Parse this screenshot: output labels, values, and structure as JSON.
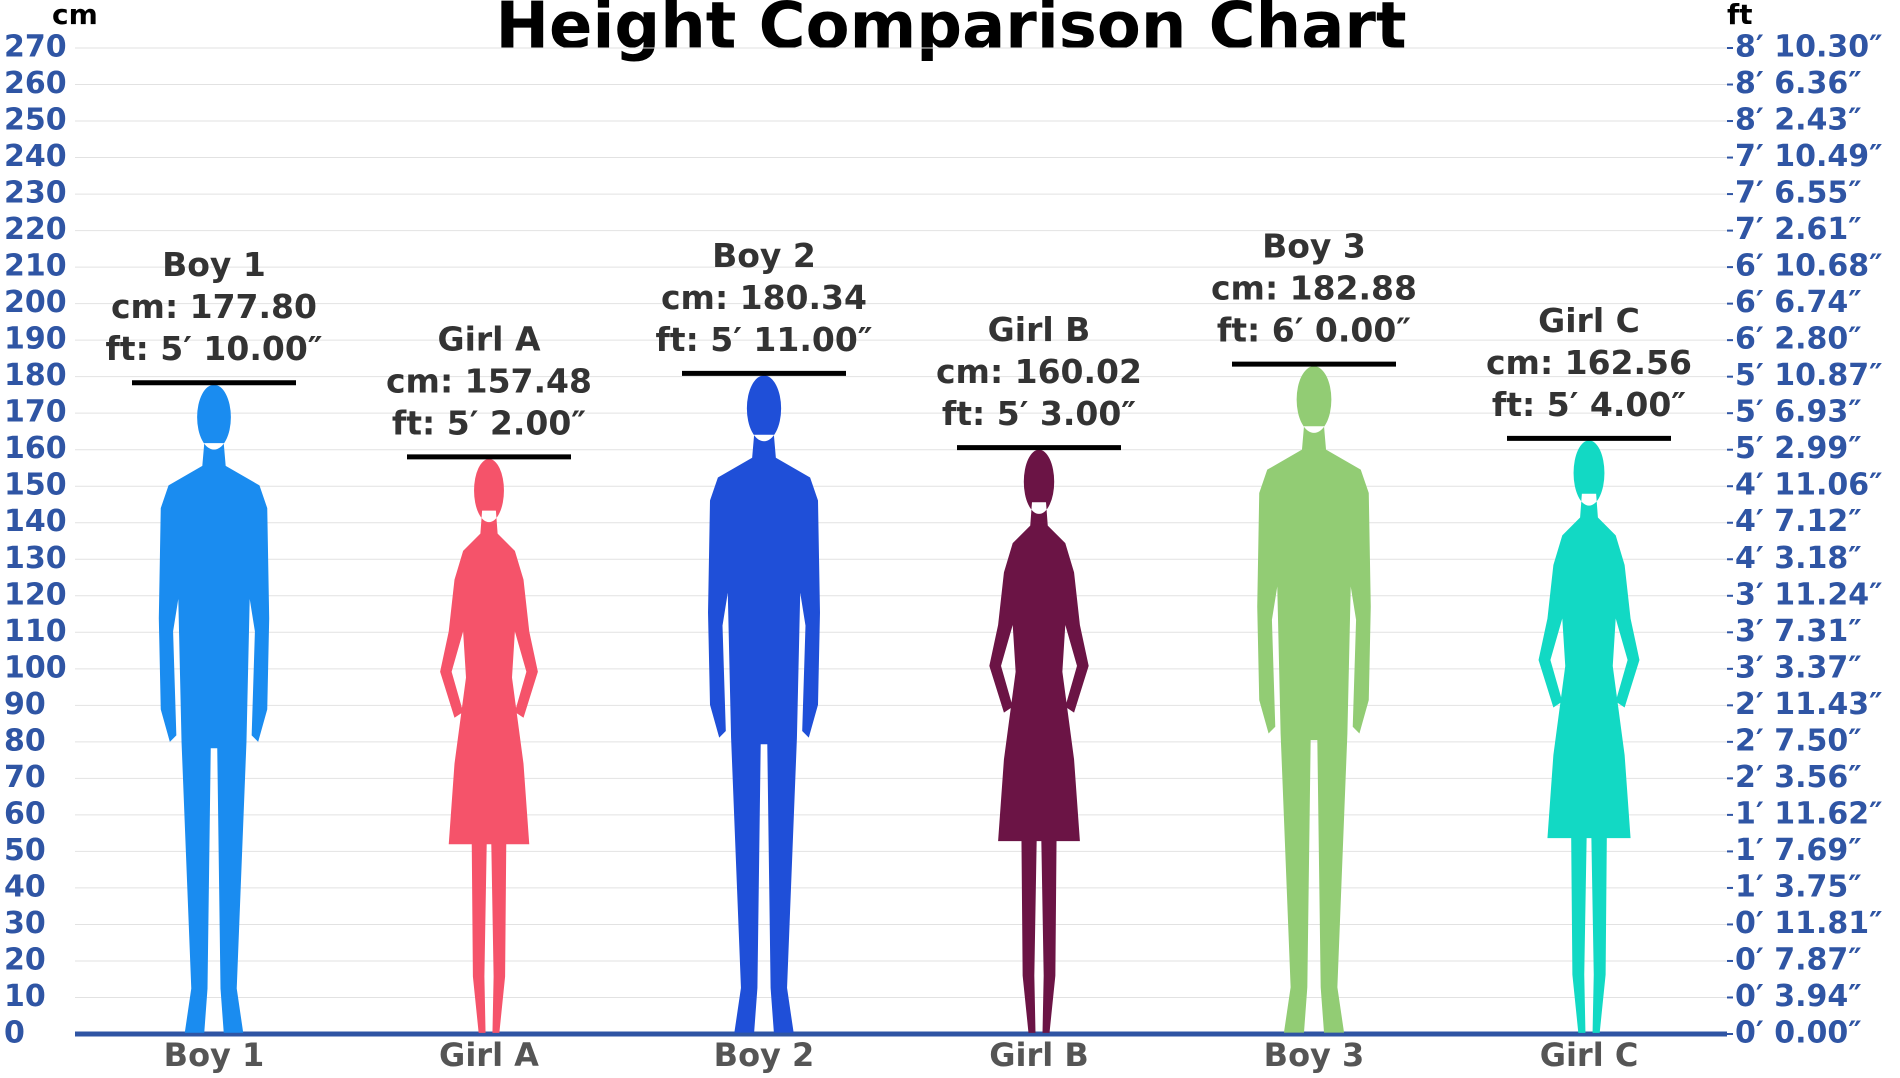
{
  "chart_data": {
    "type": "bar",
    "title": "Height Comparison Chart",
    "y_label": "cm",
    "y2_label": "ft",
    "categories": [
      "Boy 1",
      "Girl A",
      "Boy 2",
      "Girl B",
      "Boy 3",
      "Girl C"
    ],
    "values": [
      177.8,
      157.48,
      180.34,
      160.02,
      182.88,
      162.56
    ],
    "value_labels": [
      "cm: 177.80",
      "cm: 157.48",
      "cm: 180.34",
      "cm: 160.02",
      "cm: 182.88",
      "cm: 162.56"
    ],
    "ft_labels": [
      "ft: 5′ 10.00″",
      "ft: 5′ 2.00″",
      "ft: 5′ 11.00″",
      "ft: 5′ 3.00″",
      "ft: 6′ 0.00″",
      "ft: 5′ 4.00″"
    ],
    "colors": [
      "#1a8cf0",
      "#f5536a",
      "#1f4fd8",
      "#6b1445",
      "#92cc74",
      "#12d9c4"
    ],
    "figures": [
      "male",
      "female",
      "male",
      "female",
      "male",
      "female"
    ],
    "ylim": [
      0,
      270
    ],
    "yticks": [
      0,
      10,
      20,
      30,
      40,
      50,
      60,
      70,
      80,
      90,
      100,
      110,
      120,
      130,
      140,
      150,
      160,
      170,
      180,
      190,
      200,
      210,
      220,
      230,
      240,
      250,
      260,
      270
    ],
    "y2lim": [
      0,
      270
    ],
    "y2ticks": [
      {
        "value": 0,
        "label": "0′ 0.00″"
      },
      {
        "value": 10,
        "label": "0′ 3.94″"
      },
      {
        "value": 20,
        "label": "0′ 7.87″"
      },
      {
        "value": 30,
        "label": "0′ 11.81″"
      },
      {
        "value": 40,
        "label": "1′ 3.75″"
      },
      {
        "value": 50,
        "label": "1′ 7.69″"
      },
      {
        "value": 60,
        "label": "1′ 11.62″"
      },
      {
        "value": 70,
        "label": "2′ 3.56″"
      },
      {
        "value": 80,
        "label": "2′ 7.50″"
      },
      {
        "value": 90,
        "label": "2′ 11.43″"
      },
      {
        "value": 100,
        "label": "3′ 3.37″"
      },
      {
        "value": 110,
        "label": "3′ 7.31″"
      },
      {
        "value": 120,
        "label": "3′ 11.24″"
      },
      {
        "value": 130,
        "label": "4′ 3.18″"
      },
      {
        "value": 140,
        "label": "4′ 7.12″"
      },
      {
        "value": 150,
        "label": "4′ 11.06″"
      },
      {
        "value": 160,
        "label": "5′ 2.99″"
      },
      {
        "value": 170,
        "label": "5′ 6.93″"
      },
      {
        "value": 180,
        "label": "5′ 10.87″"
      },
      {
        "value": 190,
        "label": "6′ 2.80″"
      },
      {
        "value": 200,
        "label": "6′ 6.74″"
      },
      {
        "value": 210,
        "label": "6′ 10.68″"
      },
      {
        "value": 220,
        "label": "7′ 2.61″"
      },
      {
        "value": 230,
        "label": "7′ 6.55″"
      },
      {
        "value": 240,
        "label": "7′ 10.49″"
      },
      {
        "value": 250,
        "label": "8′ 2.43″"
      },
      {
        "value": 260,
        "label": "8′ 6.36″"
      },
      {
        "value": 270,
        "label": "8′ 10.30″"
      }
    ],
    "grid": true
  }
}
